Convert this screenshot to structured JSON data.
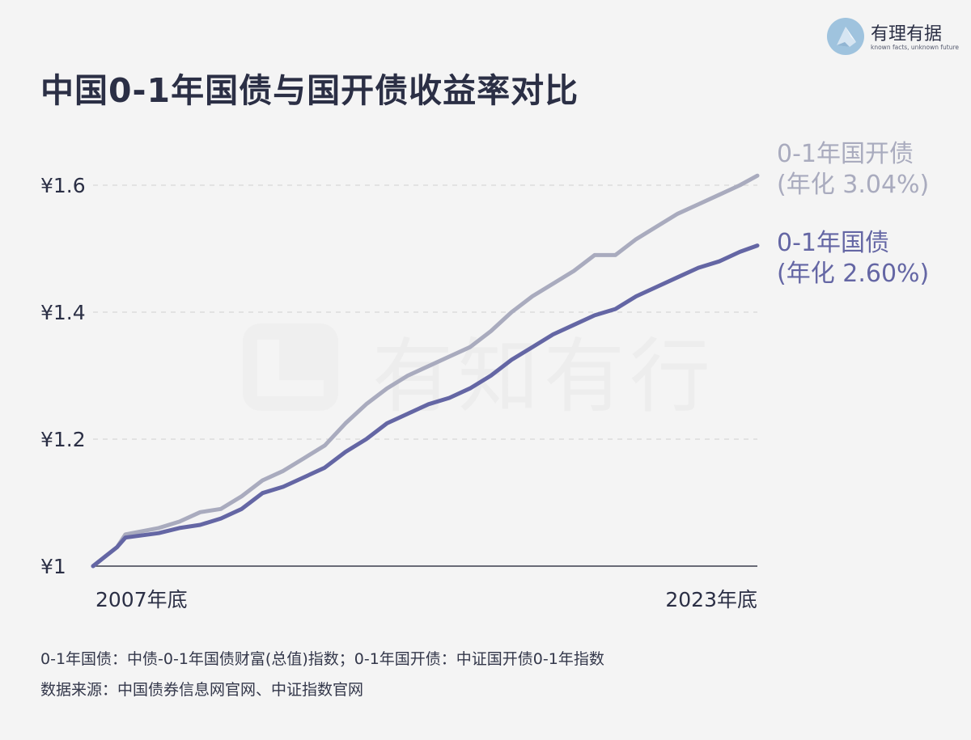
{
  "title": "中国0-1年国债与国开债收益率对比",
  "brand": {
    "name": "有理有据",
    "tagline": "known facts, unknown future",
    "logo_icon": "glass-prism-icon"
  },
  "watermark": {
    "text": "有知有行",
    "icon": "brand-mark-icon"
  },
  "footnotes": [
    "0-1年国债：中债-0-1年国债财富(总值)指数；0-1年国开债：中证国开债0-1年指数",
    "数据来源：中国债券信息网官网、中证指数官网"
  ],
  "colors": {
    "background": "#f4f4f4",
    "title": "#2b2f45",
    "gov_bond": "#6466a4",
    "cdb_bond": "#a9abbe",
    "grid": "#d6d6d6",
    "axis": "#3a3d4d"
  },
  "chart_data": {
    "type": "line",
    "title": "中国0-1年国债与国开债收益率对比",
    "x_axis": {
      "start_label": "2007年底",
      "end_label": "2023年底",
      "range": [
        2007.92,
        2023.92
      ]
    },
    "y_axis": {
      "tick_labels": [
        "¥1",
        "¥1.2",
        "¥1.4",
        "¥1.6"
      ],
      "ticks": [
        1.0,
        1.2,
        1.4,
        1.6
      ],
      "range": [
        1.0,
        1.6
      ]
    },
    "grid": "dashed horizontal",
    "series": [
      {
        "name": "0-1年国开债",
        "label_line1": "0-1年国开债",
        "label_line2": "(年化 3.04%)",
        "color": "#a9abbe",
        "x": [
          2007.92,
          2008.5,
          2008.7,
          2009.5,
          2010.0,
          2010.5,
          2011.0,
          2011.5,
          2012.0,
          2012.5,
          2013.0,
          2013.5,
          2014.0,
          2014.5,
          2015.0,
          2015.5,
          2016.0,
          2016.5,
          2017.0,
          2017.5,
          2018.0,
          2018.5,
          2019.0,
          2019.5,
          2020.0,
          2020.5,
          2021.0,
          2021.5,
          2022.0,
          2022.5,
          2023.0,
          2023.5,
          2023.92
        ],
        "y": [
          1.0,
          1.03,
          1.05,
          1.06,
          1.07,
          1.085,
          1.09,
          1.11,
          1.135,
          1.15,
          1.17,
          1.19,
          1.225,
          1.255,
          1.28,
          1.3,
          1.315,
          1.33,
          1.345,
          1.37,
          1.4,
          1.425,
          1.445,
          1.465,
          1.49,
          1.49,
          1.515,
          1.535,
          1.555,
          1.57,
          1.585,
          1.6,
          1.615
        ]
      },
      {
        "name": "0-1年国债",
        "label_line1": "0-1年国债",
        "label_line2": "(年化 2.60%)",
        "color": "#6466a4",
        "x": [
          2007.92,
          2008.5,
          2008.7,
          2009.5,
          2010.0,
          2010.5,
          2011.0,
          2011.5,
          2012.0,
          2012.5,
          2013.0,
          2013.5,
          2014.0,
          2014.5,
          2015.0,
          2015.5,
          2016.0,
          2016.5,
          2017.0,
          2017.5,
          2018.0,
          2018.5,
          2019.0,
          2019.5,
          2020.0,
          2020.5,
          2021.0,
          2021.5,
          2022.0,
          2022.5,
          2023.0,
          2023.5,
          2023.92
        ],
        "y": [
          1.0,
          1.03,
          1.045,
          1.052,
          1.06,
          1.065,
          1.075,
          1.09,
          1.115,
          1.125,
          1.14,
          1.155,
          1.18,
          1.2,
          1.225,
          1.24,
          1.255,
          1.265,
          1.28,
          1.3,
          1.325,
          1.345,
          1.365,
          1.38,
          1.395,
          1.405,
          1.425,
          1.44,
          1.455,
          1.47,
          1.48,
          1.495,
          1.505
        ]
      }
    ]
  }
}
